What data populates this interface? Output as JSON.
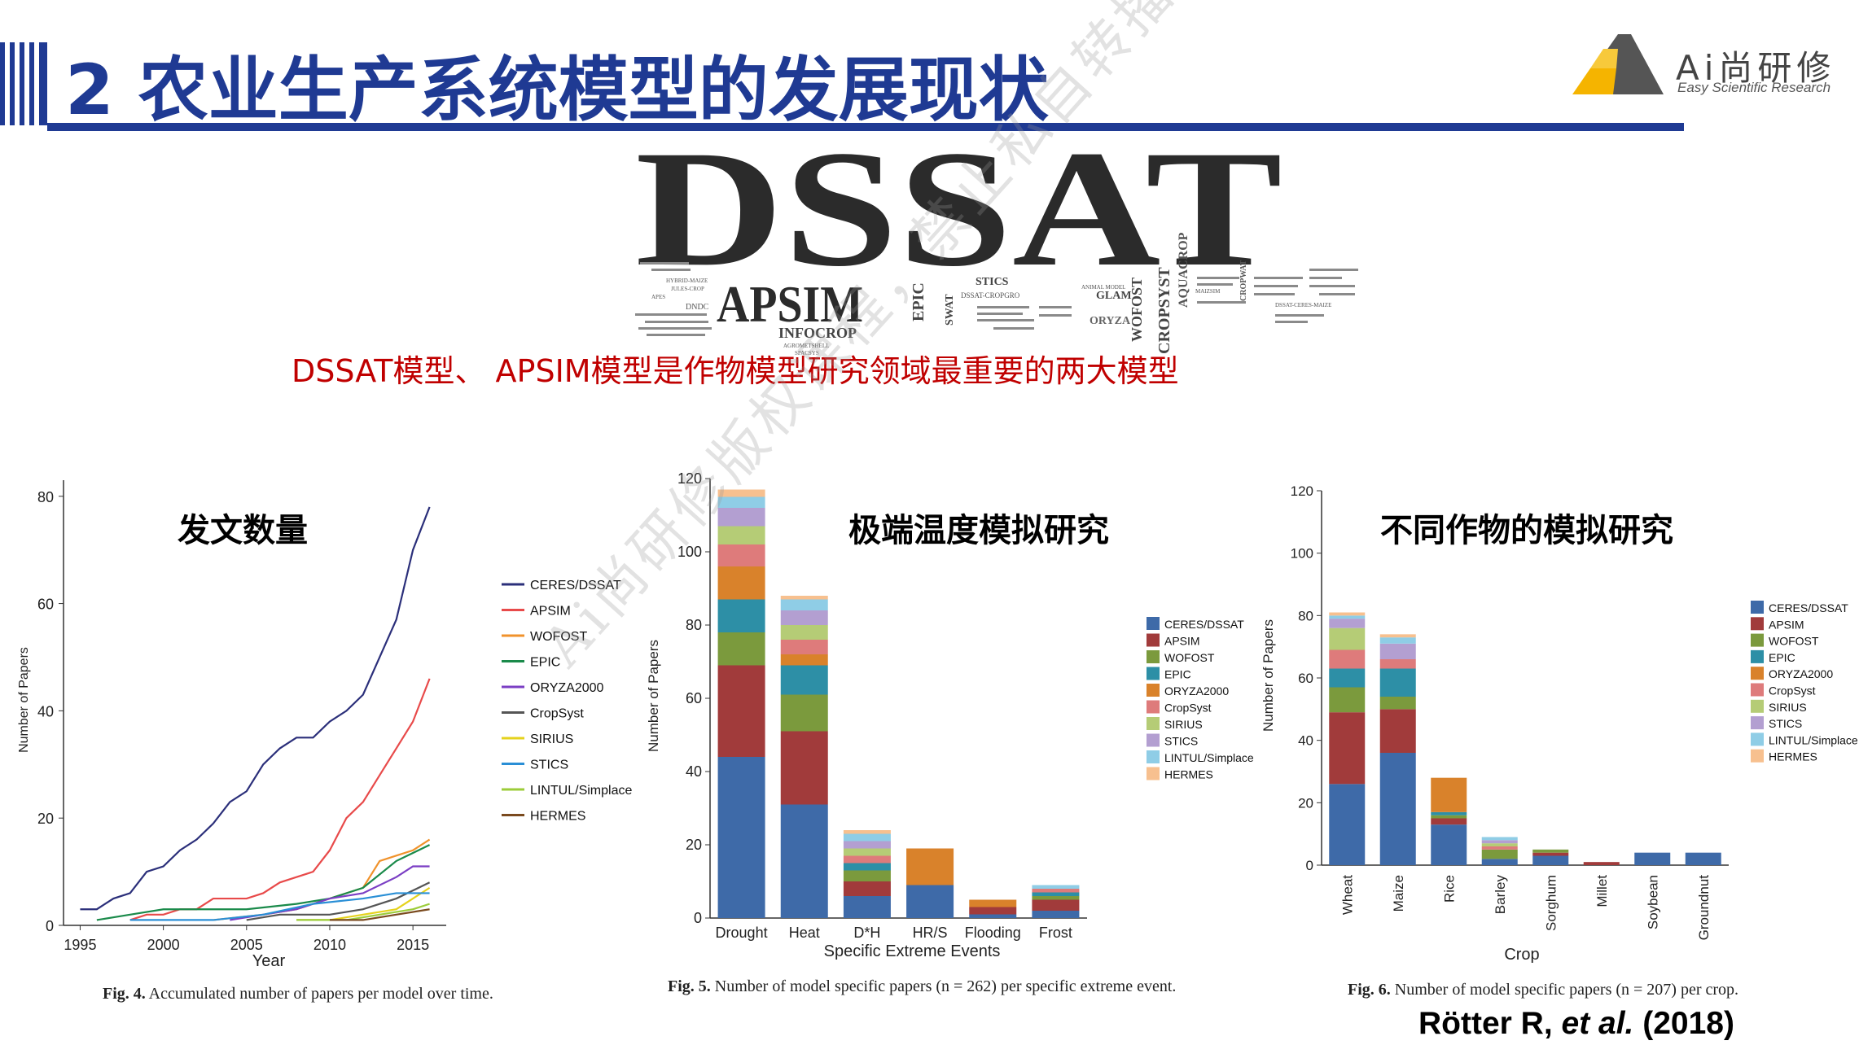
{
  "slide": {
    "title": "2 农业生产系统模型的发展现状",
    "subtitle_red": "DSSAT模型、 APSIM模型是作物模型研究领域最重要的两大模型",
    "citation": {
      "author": "Rötter R, ",
      "etal": "et al.",
      "year": " (2018)"
    },
    "watermark": "Ai尚研修版权课程，禁止私自转播",
    "accent_color": "#1f3a93",
    "red_color": "#c00000"
  },
  "logo": {
    "name": "Ai尚研修",
    "tagline": "Easy Scientific Research",
    "icon": "mountain-logo-icon"
  },
  "wordcloud": {
    "big": "DSSAT",
    "medium": "APSIM",
    "words": [
      "INFOCROP",
      "EPIC",
      "SWAT",
      "STICS",
      "GLAM",
      "ORYZA",
      "WOFOST",
      "CROPSYST",
      "AQUACROP",
      "CROPWAT",
      "DNDC",
      "DSSAT-CROPGRO",
      "HYBRID-MAIZE",
      "JULES-CROP",
      "AGROMETSHELL",
      "MAIZSIM",
      "DSSAT-CERES-MAIZE",
      "APES",
      "ANIMAL MODEL",
      "SPACSYS"
    ]
  },
  "chart_data": [
    {
      "type": "line",
      "heading": "发文数量",
      "caption_bold": "Fig. 4.",
      "caption": " Accumulated number of papers per model over time.",
      "xlabel": "Year",
      "ylabel": "Number of Papers",
      "xlim": [
        1994,
        2017
      ],
      "ylim": [
        0,
        83
      ],
      "xticks": [
        1995,
        2000,
        2005,
        2010,
        2015
      ],
      "yticks": [
        0,
        20,
        40,
        60,
        80
      ],
      "legend_position": "right",
      "series": [
        {
          "name": "CERES/DSSAT",
          "color": "#2b2f7a",
          "x": [
            1995,
            1996,
            1997,
            1998,
            1999,
            2000,
            2001,
            2002,
            2003,
            2004,
            2005,
            2006,
            2007,
            2008,
            2009,
            2010,
            2011,
            2012,
            2013,
            2014,
            2015,
            2016
          ],
          "y": [
            3,
            3,
            5,
            6,
            10,
            11,
            14,
            16,
            19,
            23,
            25,
            30,
            33,
            35,
            35,
            38,
            40,
            43,
            50,
            57,
            70,
            78
          ]
        },
        {
          "name": "APSIM",
          "color": "#e84a4a",
          "x": [
            1998,
            1999,
            2000,
            2001,
            2002,
            2003,
            2004,
            2005,
            2006,
            2007,
            2008,
            2009,
            2010,
            2011,
            2012,
            2013,
            2014,
            2015,
            2016
          ],
          "y": [
            1,
            2,
            2,
            3,
            3,
            5,
            5,
            5,
            6,
            8,
            9,
            10,
            14,
            20,
            23,
            28,
            33,
            38,
            46
          ]
        },
        {
          "name": "WOFOST",
          "color": "#f0922b",
          "x": [
            2003,
            2006,
            2008,
            2010,
            2012,
            2013,
            2014,
            2015,
            2016
          ],
          "y": [
            1,
            2,
            3,
            5,
            7,
            12,
            13,
            14,
            16
          ]
        },
        {
          "name": "EPIC",
          "color": "#1a8a4a",
          "x": [
            1996,
            1998,
            2000,
            2002,
            2005,
            2008,
            2010,
            2012,
            2014,
            2016
          ],
          "y": [
            1,
            2,
            3,
            3,
            3,
            4,
            5,
            7,
            12,
            15
          ]
        },
        {
          "name": "ORYZA2000",
          "color": "#7b3fc4",
          "x": [
            2004,
            2006,
            2008,
            2010,
            2012,
            2014,
            2015,
            2016
          ],
          "y": [
            1,
            2,
            3,
            5,
            6,
            9,
            11,
            11
          ]
        },
        {
          "name": "CropSyst",
          "color": "#555555",
          "x": [
            2005,
            2007,
            2010,
            2012,
            2014,
            2016
          ],
          "y": [
            1,
            2,
            2,
            3,
            5,
            8
          ]
        },
        {
          "name": "SIRIUS",
          "color": "#e5d21c",
          "x": [
            2008,
            2010,
            2012,
            2014,
            2015,
            2016
          ],
          "y": [
            1,
            1,
            2,
            3,
            5,
            7
          ]
        },
        {
          "name": "STICS",
          "color": "#2a8fd6",
          "x": [
            1998,
            2000,
            2003,
            2006,
            2009,
            2012,
            2014,
            2016
          ],
          "y": [
            1,
            1,
            1,
            2,
            4,
            5,
            6,
            6
          ]
        },
        {
          "name": "LINTUL/Simplace",
          "color": "#9ccc3a",
          "x": [
            2008,
            2011,
            2013,
            2015,
            2016
          ],
          "y": [
            1,
            1,
            2,
            3,
            4
          ]
        },
        {
          "name": "HERMES",
          "color": "#7a4a1e",
          "x": [
            2010,
            2012,
            2014,
            2016
          ],
          "y": [
            1,
            1,
            2,
            3
          ]
        }
      ]
    },
    {
      "type": "bar",
      "stacked": true,
      "heading": "极端温度模拟研究",
      "caption_bold": "Fig. 5.",
      "caption": " Number of model specific papers (n = 262) per specific extreme event.",
      "xlabel": "Specific Extreme Events",
      "ylabel": "Number of Papers",
      "ylim": [
        0,
        120
      ],
      "yticks": [
        0,
        20,
        40,
        60,
        80,
        100,
        120
      ],
      "categories": [
        "Drought",
        "Heat",
        "D*H",
        "HR/S",
        "Flooding",
        "Frost"
      ],
      "legend_position": "right",
      "series": [
        {
          "name": "CERES/DSSAT",
          "color": "#3e6aa8",
          "values": [
            44,
            31,
            6,
            9,
            1,
            2
          ]
        },
        {
          "name": "APSIM",
          "color": "#a13b3b",
          "values": [
            25,
            20,
            4,
            0,
            2,
            3
          ]
        },
        {
          "name": "WOFOST",
          "color": "#7b9a3d",
          "values": [
            9,
            10,
            3,
            0,
            0,
            1
          ]
        },
        {
          "name": "EPIC",
          "color": "#2d8fa6",
          "values": [
            9,
            8,
            2,
            0,
            0,
            1
          ]
        },
        {
          "name": "ORYZA2000",
          "color": "#d9822b",
          "values": [
            9,
            3,
            0,
            10,
            2,
            0
          ]
        },
        {
          "name": "CropSyst",
          "color": "#de7b7b",
          "values": [
            6,
            4,
            2,
            0,
            0,
            1
          ]
        },
        {
          "name": "SIRIUS",
          "color": "#b5cc76",
          "values": [
            5,
            4,
            2,
            0,
            0,
            0
          ]
        },
        {
          "name": "STICS",
          "color": "#b39fd1",
          "values": [
            5,
            4,
            2,
            0,
            0,
            0
          ]
        },
        {
          "name": "LINTUL/Simplace",
          "color": "#8fcde6",
          "values": [
            3,
            3,
            2,
            0,
            0,
            1
          ]
        },
        {
          "name": "HERMES",
          "color": "#f7c08f",
          "values": [
            2,
            1,
            1,
            0,
            0,
            0
          ]
        }
      ]
    },
    {
      "type": "bar",
      "stacked": true,
      "heading": "不同作物的模拟研究",
      "caption_bold": "Fig. 6.",
      "caption": " Number of model specific papers (n = 207) per crop.",
      "xlabel": "Crop",
      "ylabel": "Number of Papers",
      "ylim": [
        0,
        120
      ],
      "yticks": [
        0,
        20,
        40,
        60,
        80,
        100,
        120
      ],
      "categories": [
        "Wheat",
        "Maize",
        "Rice",
        "Barley",
        "Sorghum",
        "Millet",
        "Soybean",
        "Groundnut"
      ],
      "legend_position": "right",
      "series": [
        {
          "name": "CERES/DSSAT",
          "color": "#3e6aa8",
          "values": [
            26,
            36,
            13,
            2,
            3,
            0,
            4,
            4
          ]
        },
        {
          "name": "APSIM",
          "color": "#a13b3b",
          "values": [
            23,
            14,
            2,
            0,
            1,
            1,
            0,
            0
          ]
        },
        {
          "name": "WOFOST",
          "color": "#7b9a3d",
          "values": [
            8,
            4,
            1,
            3,
            1,
            0,
            0,
            0
          ]
        },
        {
          "name": "EPIC",
          "color": "#2d8fa6",
          "values": [
            6,
            9,
            1,
            0,
            0,
            0,
            0,
            0
          ]
        },
        {
          "name": "ORYZA2000",
          "color": "#d9822b",
          "values": [
            0,
            0,
            11,
            0,
            0,
            0,
            0,
            0
          ]
        },
        {
          "name": "CropSyst",
          "color": "#de7b7b",
          "values": [
            6,
            3,
            0,
            1,
            0,
            0,
            0,
            0
          ]
        },
        {
          "name": "SIRIUS",
          "color": "#b5cc76",
          "values": [
            7,
            0,
            0,
            1,
            0,
            0,
            0,
            0
          ]
        },
        {
          "name": "STICS",
          "color": "#b39fd1",
          "values": [
            3,
            5,
            0,
            1,
            0,
            0,
            0,
            0
          ]
        },
        {
          "name": "LINTUL/Simplace",
          "color": "#8fcde6",
          "values": [
            1,
            2,
            0,
            1,
            0,
            0,
            0,
            0
          ]
        },
        {
          "name": "HERMES",
          "color": "#f7c08f",
          "values": [
            1,
            1,
            0,
            0,
            0,
            0,
            0,
            0
          ]
        }
      ]
    }
  ]
}
